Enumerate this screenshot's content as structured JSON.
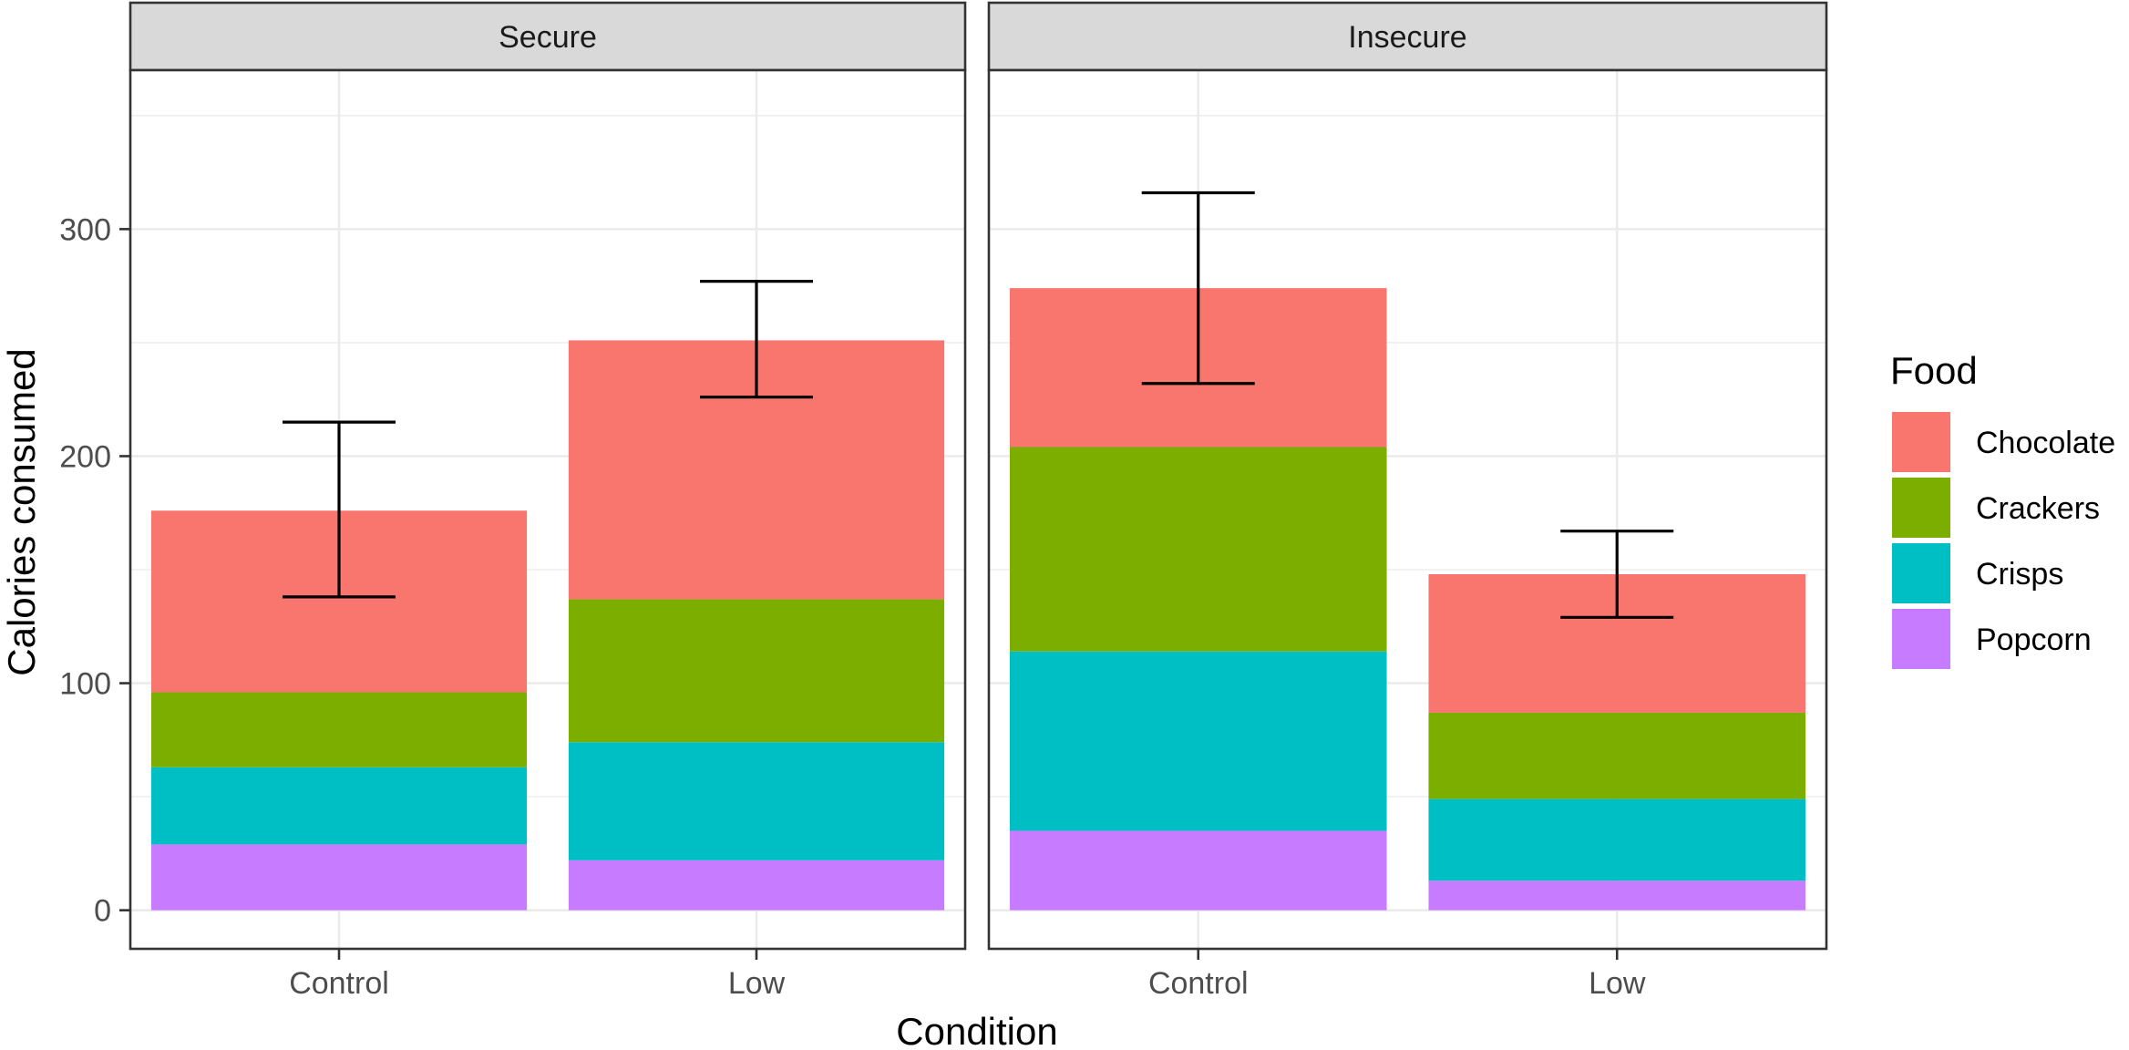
{
  "chart_data": {
    "type": "bar",
    "stacked": true,
    "xlabel": "Condition",
    "ylabel": "Calories consumed",
    "ylim": [
      -17,
      370
    ],
    "yticks": [
      0,
      100,
      200,
      300
    ],
    "categories": [
      "Control",
      "Low"
    ],
    "panels": [
      {
        "name": "Secure",
        "bars": [
          {
            "category": "Control",
            "segments": {
              "Popcorn": 29,
              "Crisps": 34,
              "Crackers": 33,
              "Chocolate": 80
            },
            "total": 176,
            "error": {
              "low": 138,
              "high": 215
            }
          },
          {
            "category": "Low",
            "segments": {
              "Popcorn": 22,
              "Crisps": 52,
              "Crackers": 63,
              "Chocolate": 114
            },
            "total": 251,
            "error": {
              "low": 226,
              "high": 277
            }
          }
        ]
      },
      {
        "name": "Insecure",
        "bars": [
          {
            "category": "Control",
            "segments": {
              "Popcorn": 35,
              "Crisps": 79,
              "Crackers": 90,
              "Chocolate": 70
            },
            "total": 274,
            "error": {
              "low": 232,
              "high": 316
            }
          },
          {
            "category": "Low",
            "segments": {
              "Popcorn": 13,
              "Crisps": 36,
              "Crackers": 38,
              "Chocolate": 61
            },
            "total": 148,
            "error": {
              "low": 129,
              "high": 167
            }
          }
        ]
      }
    ],
    "stack_order": [
      "Popcorn",
      "Crisps",
      "Crackers",
      "Chocolate"
    ],
    "legend": {
      "title": "Food",
      "position": "right",
      "items": [
        {
          "label": "Chocolate",
          "color": "#F8766D"
        },
        {
          "label": "Crackers",
          "color": "#7CAE00"
        },
        {
          "label": "Crisps",
          "color": "#00BFC4"
        },
        {
          "label": "Popcorn",
          "color": "#C77CFF"
        }
      ]
    },
    "grid": true
  }
}
